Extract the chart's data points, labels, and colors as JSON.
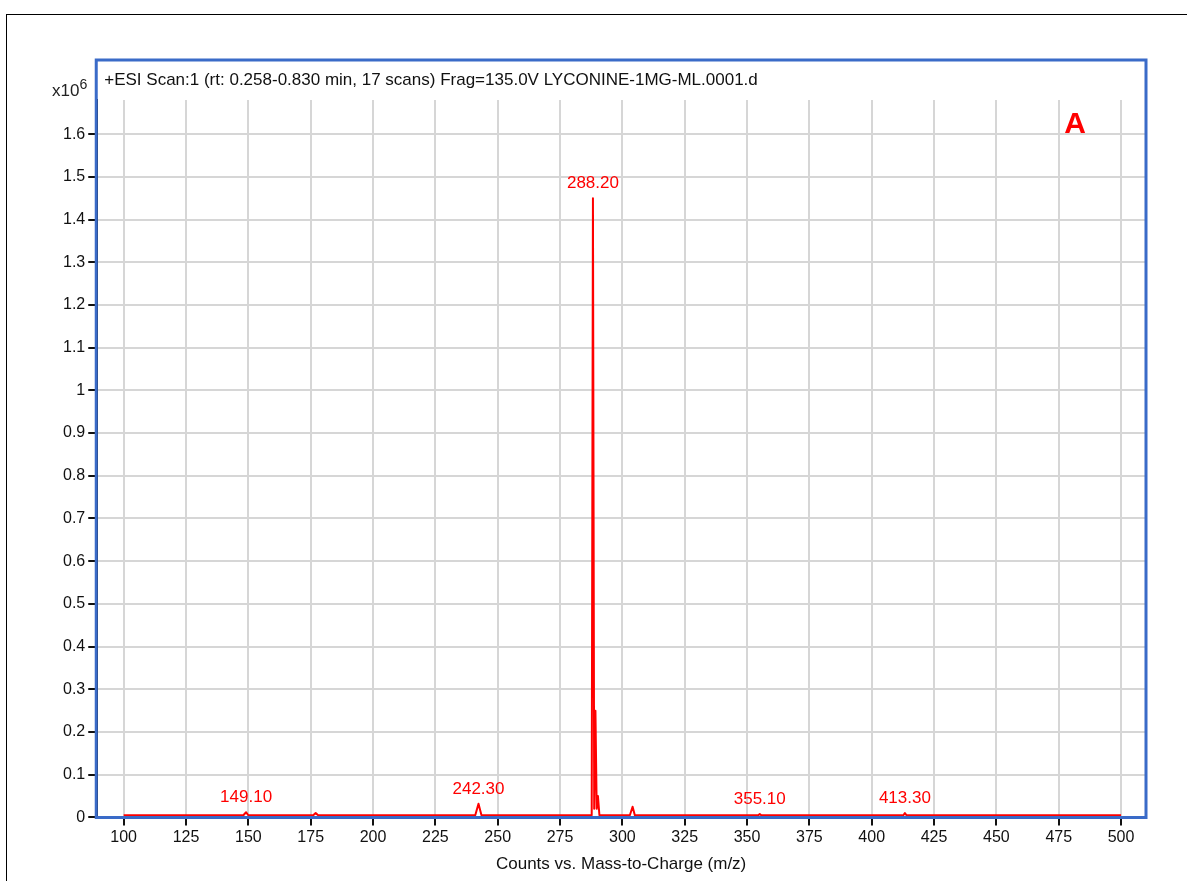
{
  "chart_data": {
    "type": "line",
    "title": "+ESI Scan:1 (rt: 0.258-0.830 min, 17 scans) Frag=135.0V LYCONINE-1MG-ML.0001.d",
    "xlabel": "Counts vs. Mass-to-Charge (m/z)",
    "ylabel": "x10$^{6}$",
    "series": [
      {
        "color": "#ff0000",
        "x": [
          100,
          148,
          149.1,
          150,
          176,
          177,
          178,
          241,
          242.3,
          243.5,
          287.7,
          288.2,
          288.7,
          289.2,
          289.7,
          290.2,
          290.8,
          303,
          304.1,
          305,
          354.5,
          355.1,
          355.7,
          412.7,
          413.3,
          414,
          500
        ],
        "values": [
          0.005,
          0.005,
          0.012,
          0.005,
          0.005,
          0.01,
          0.005,
          0.005,
          0.032,
          0.005,
          0.005,
          1.45,
          0.02,
          0.25,
          0.02,
          0.05,
          0.005,
          0.005,
          0.025,
          0.005,
          0.005,
          0.008,
          0.005,
          0.005,
          0.01,
          0.005,
          0.005
        ]
      }
    ],
    "annotations": [
      {
        "text": "149.10",
        "x": 149.1,
        "y": 0.012
      },
      {
        "text": "242.30",
        "x": 242.3,
        "y": 0.032
      },
      {
        "text": "288.20",
        "x": 288.2,
        "y": 1.45
      },
      {
        "text": "355.10",
        "x": 355.1,
        "y": 0.008
      },
      {
        "text": "413.30",
        "x": 413.3,
        "y": 0.01
      },
      "A"
    ],
    "xlim": [
      89,
      510
    ],
    "xticks": [
      100,
      125,
      150,
      175,
      200,
      225,
      250,
      275,
      300,
      325,
      350,
      375,
      400,
      425,
      450,
      475,
      500
    ],
    "ylim": [
      0,
      1.68
    ],
    "yticks": [
      0,
      0.1,
      0.2,
      0.3,
      0.4,
      0.5,
      0.6,
      0.7,
      0.8,
      0.9,
      1,
      1.1,
      1.2,
      1.3,
      1.4,
      1.5,
      1.6
    ],
    "grid": true,
    "marker": "none",
    "line_style": "solid"
  }
}
